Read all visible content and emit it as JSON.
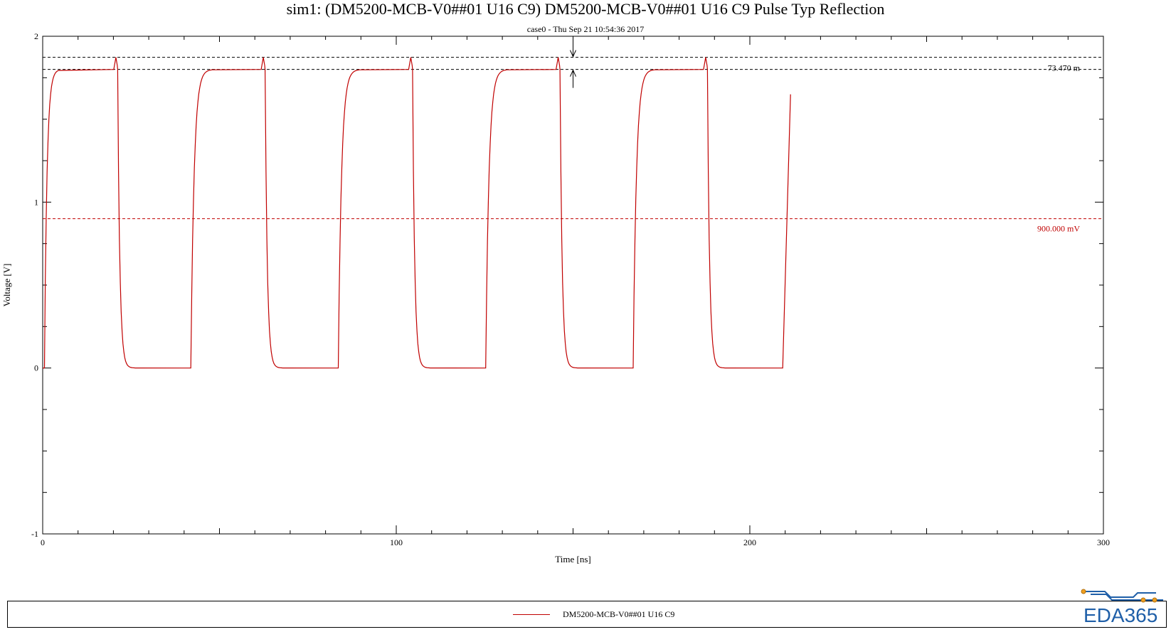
{
  "chart_data": {
    "type": "line",
    "title": "sim1: (DM5200-MCB-V0##01 U16 C9) DM5200-MCB-V0##01 U16 C9 Pulse Typ Reflection",
    "subtitle": "case0 - Thu Sep 21 10:54:36 2017",
    "xlabel": "Time [ns]",
    "ylabel": "Voltage [V]",
    "xlim": [
      0,
      300
    ],
    "ylim": [
      -1,
      2
    ],
    "x_ticks": [
      "0",
      "100",
      "200",
      "300"
    ],
    "y_ticks": [
      "-1",
      "0",
      "1",
      "2"
    ],
    "grid": false,
    "legend_position": "bottom",
    "series": [
      {
        "name": "DM5200-MCB-V0##01 U16 C9",
        "color": "#c00000",
        "period_ns": 41.7,
        "high_v": 1.8,
        "low_v": 0.0,
        "overshoot_v": 1.873,
        "pulses": 5,
        "end_ns": 211.5,
        "end_v": 1.65
      }
    ],
    "annotations": {
      "threshold_label": "900.000 mV",
      "threshold_v": 0.9,
      "overshoot_label": "73.470 m",
      "overshoot_delta_v": 0.07347
    }
  },
  "legend": {
    "label": "DM5200-MCB-V0##01 U16 C9"
  },
  "logo": {
    "text": "EDA365"
  }
}
